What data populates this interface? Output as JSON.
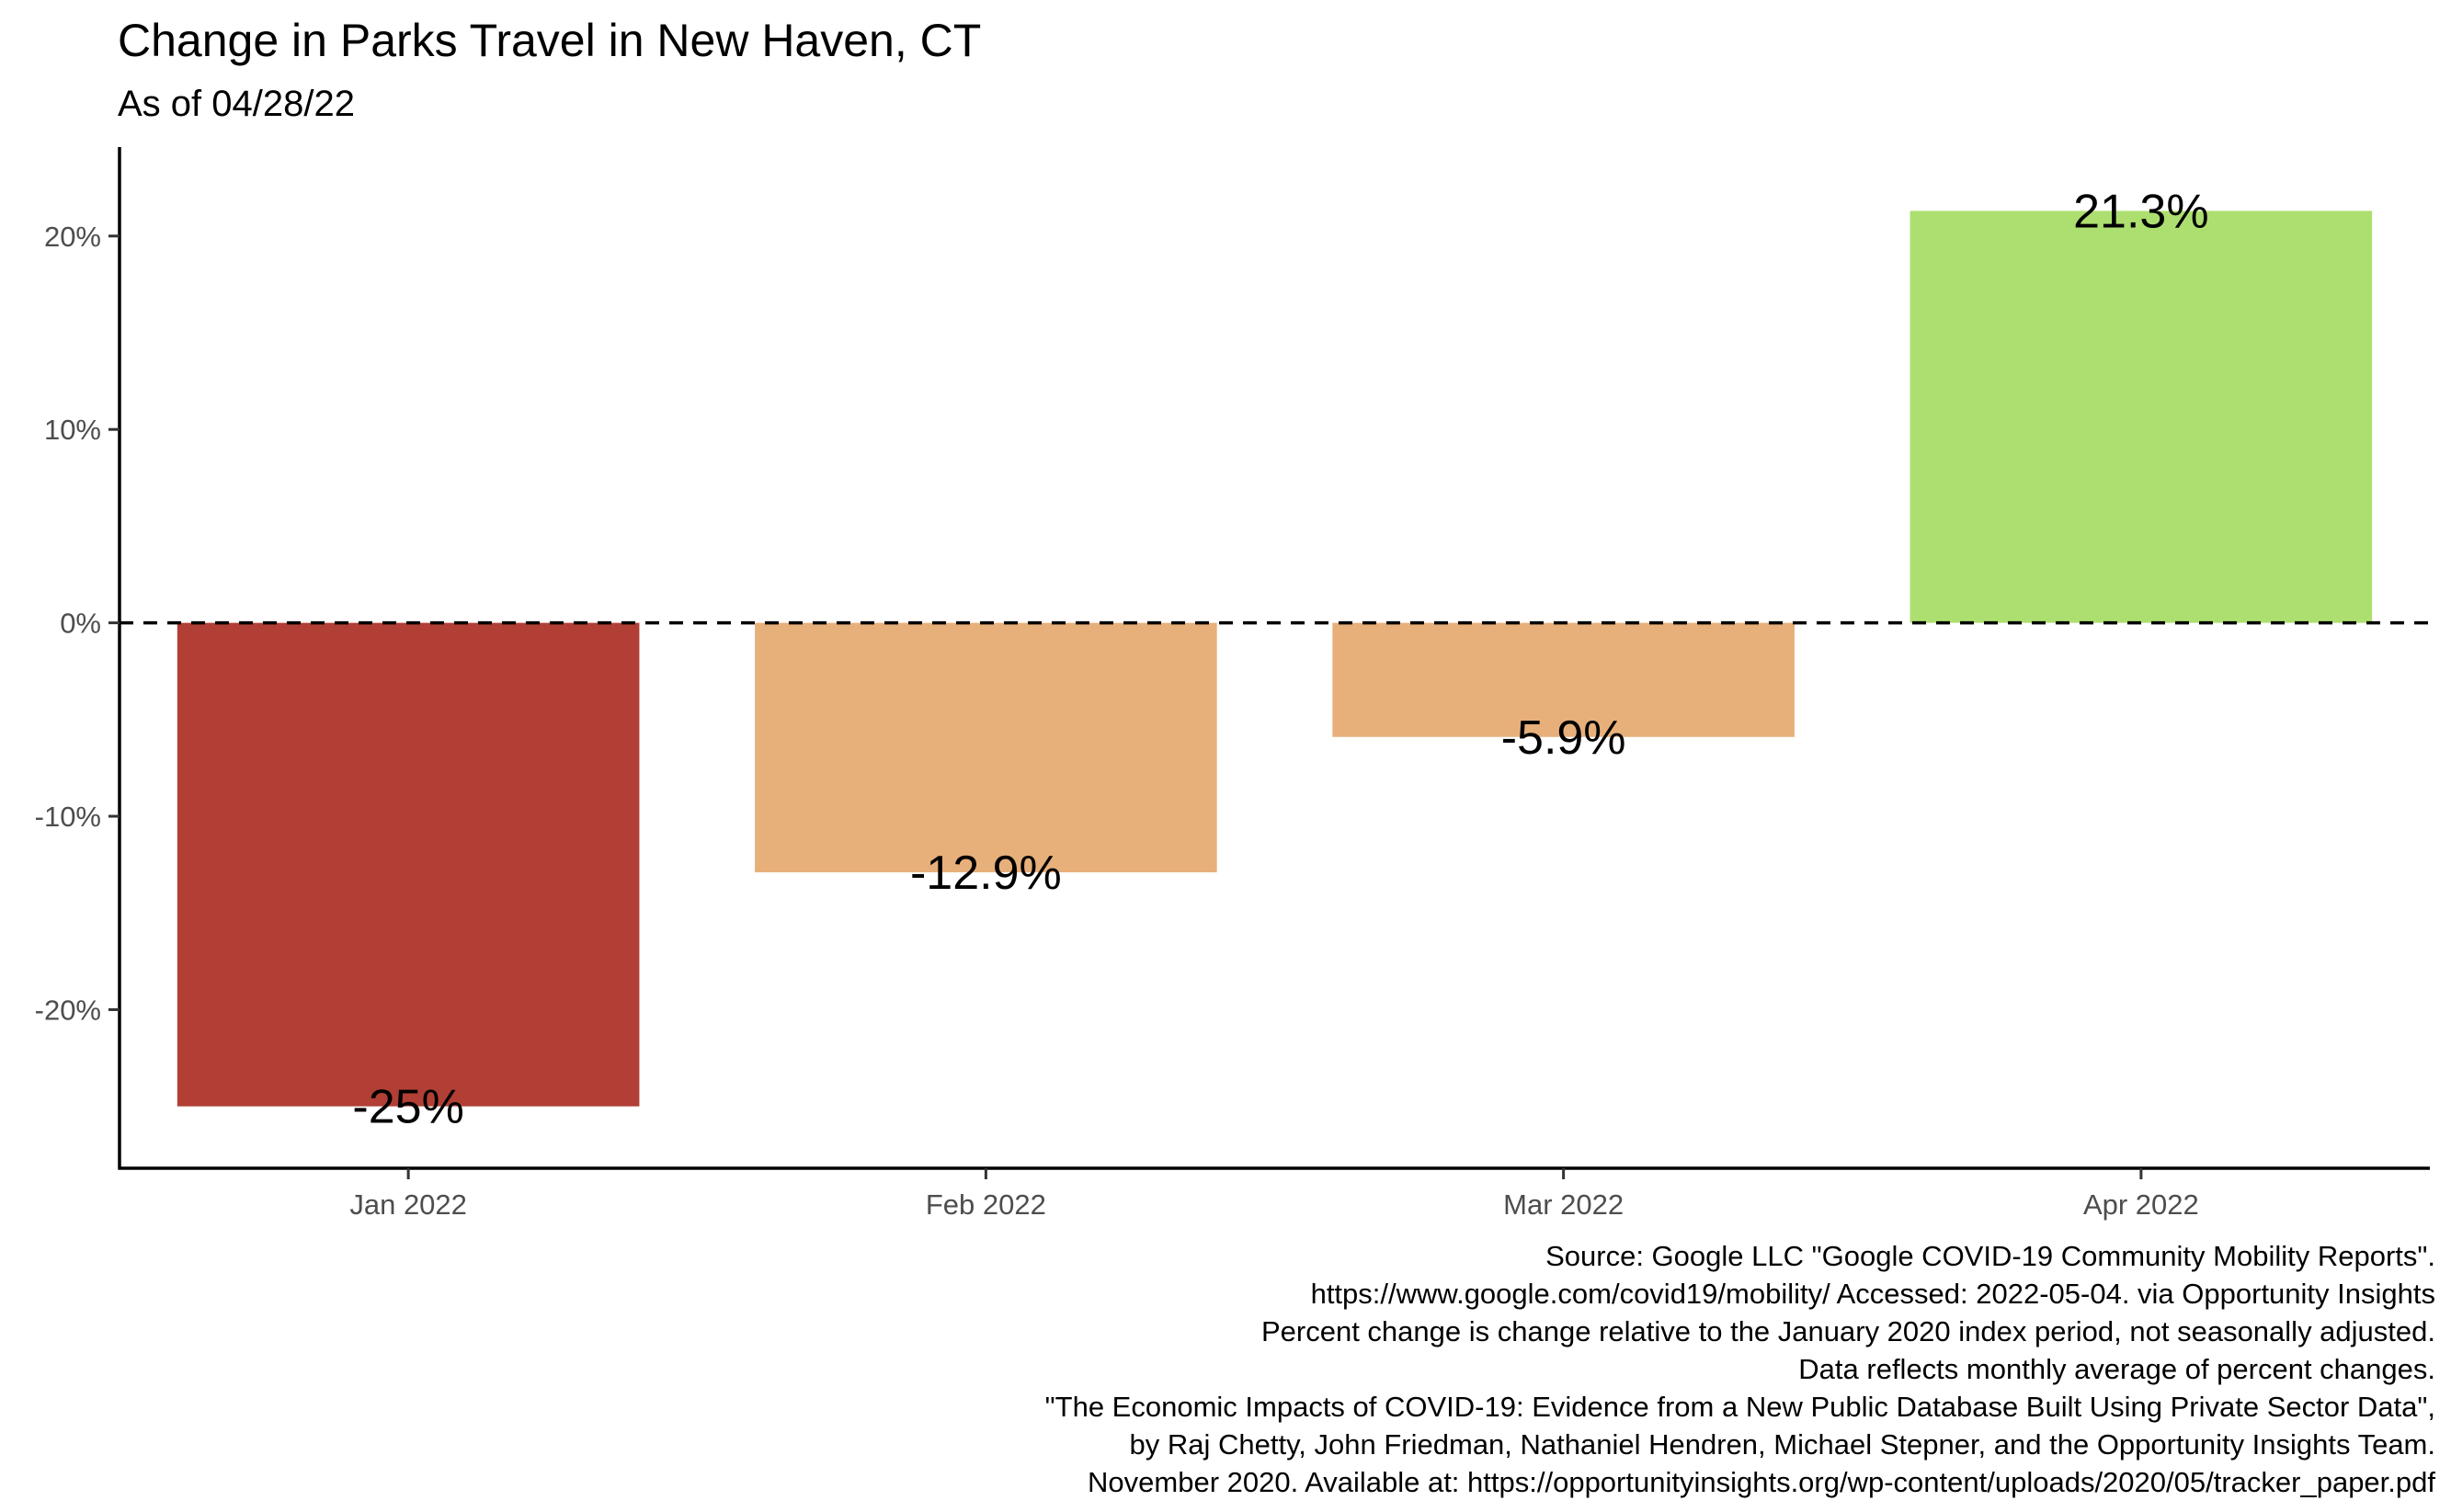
{
  "title": "Change in Parks Travel in New Haven, CT",
  "subtitle": "As of 04/28/22",
  "chart_data": {
    "type": "bar",
    "categories": [
      "Jan 2022",
      "Feb 2022",
      "Mar 2022",
      "Apr 2022"
    ],
    "values": [
      -25.0,
      -12.9,
      -5.9,
      21.3
    ],
    "data_labels": [
      "-25%",
      "-12.9%",
      "-5.9%",
      "21.3%"
    ],
    "bar_colors": [
      "#b13f35",
      "#e7b07b",
      "#e7b07b",
      "#addf70"
    ],
    "yticks": [
      -20,
      -10,
      0,
      10,
      20
    ],
    "ytick_labels": [
      "-20%",
      "-10%",
      "0%",
      "10%",
      "20%"
    ],
    "ylim": [
      -28.2,
      24.6
    ],
    "reference_line": {
      "y": 0,
      "style": "dashed"
    },
    "grid": false,
    "legend": "none"
  },
  "caption": [
    "Source: Google LLC \"Google COVID-19 Community Mobility Reports\".",
    "https://www.google.com/covid19/mobility/ Accessed: 2022-05-04. via Opportunity Insights",
    "Percent change is change relative to the January 2020 index period, not seasonally adjusted.",
    "Data reflects monthly average of percent changes.",
    "\"The Economic Impacts of COVID-19: Evidence from a New Public Database Built Using Private Sector Data\",",
    "by Raj Chetty, John Friedman, Nathaniel Hendren, Michael Stepner, and the Opportunity Insights Team.",
    "November 2020. Available at: https://opportunityinsights.org/wp-content/uploads/2020/05/tracker_paper.pdf"
  ]
}
